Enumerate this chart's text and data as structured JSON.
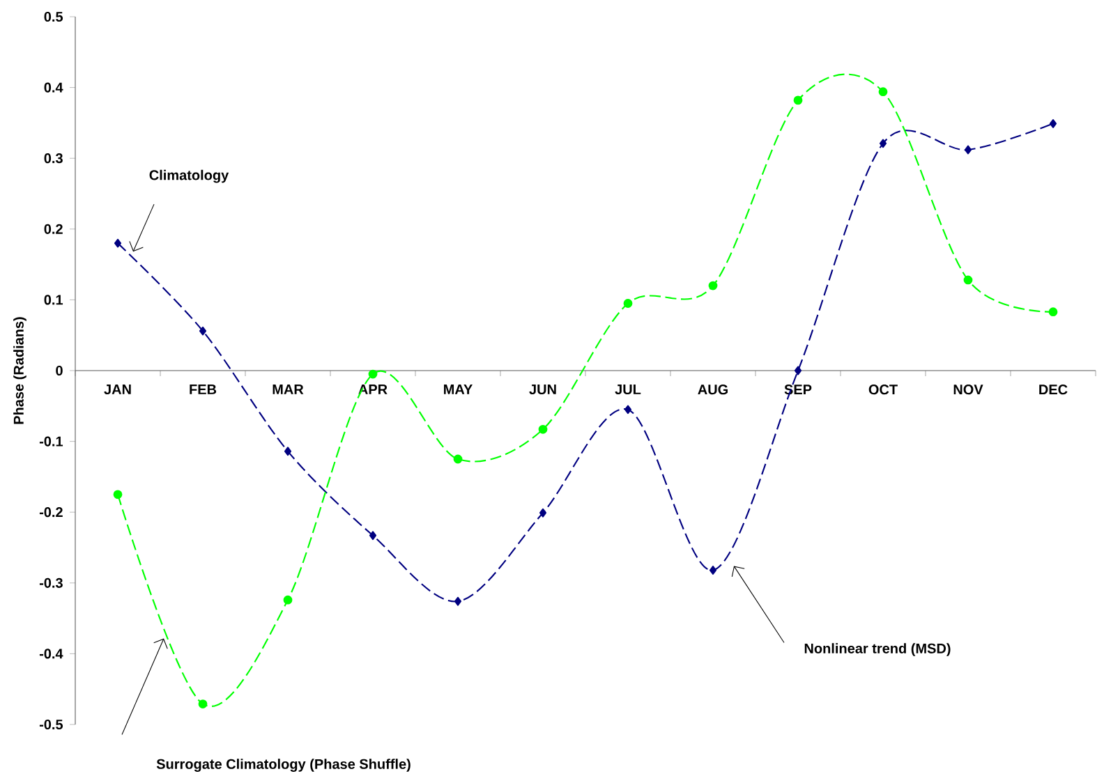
{
  "chart_data": {
    "type": "line",
    "ylabel": "Phase (Radians)",
    "categories": [
      "JAN",
      "FEB",
      "MAR",
      "APR",
      "MAY",
      "JUN",
      "JUL",
      "AUG",
      "SEP",
      "OCT",
      "NOV",
      "DEC"
    ],
    "series": [
      {
        "color": "#000080",
        "marker": "diamond",
        "values": [
          0.18,
          0.056,
          -0.114,
          -0.233,
          -0.326,
          -0.201,
          -0.055,
          -0.282,
          0.0,
          0.321,
          0.312,
          0.349
        ]
      },
      {
        "color": "#00ff00",
        "marker": "circle",
        "values": [
          -0.175,
          -0.471,
          -0.324,
          -0.005,
          -0.125,
          -0.083,
          0.095,
          0.12,
          0.382,
          0.394,
          0.128,
          0.083
        ]
      }
    ],
    "line_style": "dashed",
    "ylim": [
      -0.5,
      0.5
    ],
    "yticks": [
      -0.5,
      -0.4,
      -0.3,
      -0.2,
      -0.1,
      0,
      0.1,
      0.2,
      0.3,
      0.4,
      0.5
    ],
    "annotations": [
      "Climatology",
      "Nonlinear trend  (MSD)",
      "Surrogate Climatology (Phase Shuffle)"
    ]
  }
}
